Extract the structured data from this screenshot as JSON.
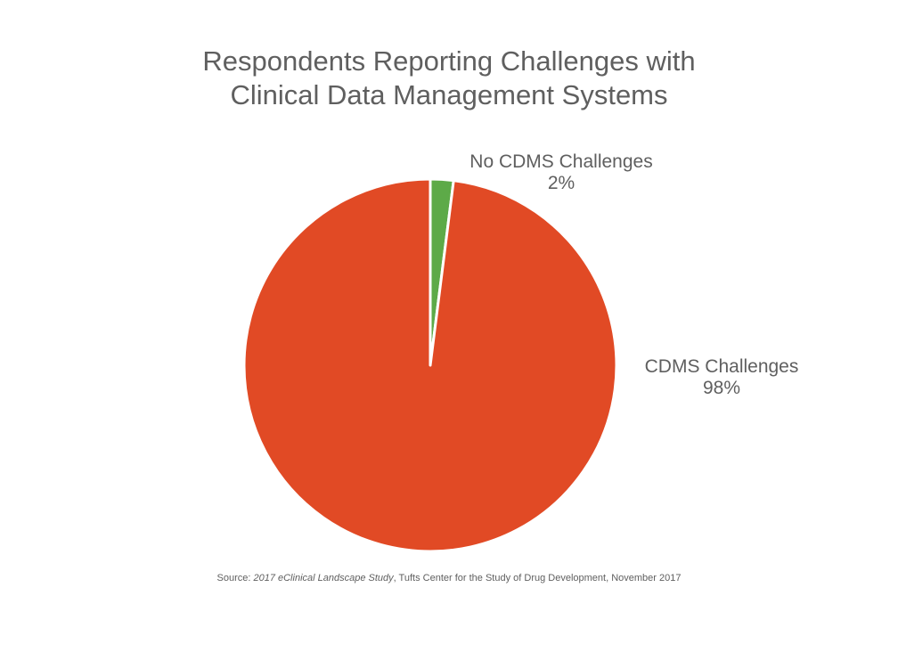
{
  "chart_data": {
    "type": "pie",
    "title_lines": [
      "Respondents Reporting Challenges with",
      "Clinical Data Management Systems"
    ],
    "slices": [
      {
        "label": "No CDMS Challenges",
        "value": 2,
        "value_label": "2%",
        "color": "#5DAA48"
      },
      {
        "label": "CDMS Challenges",
        "value": 98,
        "value_label": "98%",
        "color": "#E14A25"
      }
    ],
    "start_angle": "12 o'clock",
    "direction": "clockwise",
    "legend": "none (direct labels)"
  },
  "source": {
    "prefix": "Source: ",
    "study": "2017 eClinical Landscape Study",
    "suffix": ", Tufts Center for the Study of Drug Development, November 2017"
  }
}
